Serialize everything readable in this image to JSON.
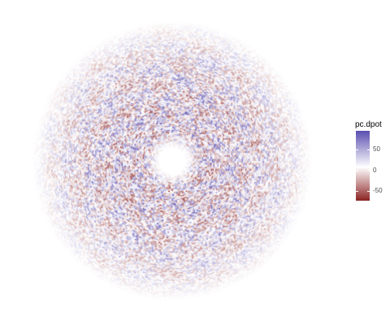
{
  "chart_data": {
    "type": "heatmap",
    "title": "",
    "xlabel": "",
    "ylabel": "",
    "legend": {
      "title": "pc.dpot",
      "placement": "right",
      "range": [
        -90,
        80
      ],
      "breaks": [
        {
          "value": 50,
          "label": "50"
        },
        {
          "value": 0,
          "label": "0"
        },
        {
          "value": -50,
          "label": "-50"
        }
      ],
      "colors": {
        "low": "#8b2323",
        "mid": "#ffffff",
        "high": "#5a4fb0"
      }
    },
    "layout_description": "polar disc of small cells with a white hole at the centre",
    "grid": false
  }
}
